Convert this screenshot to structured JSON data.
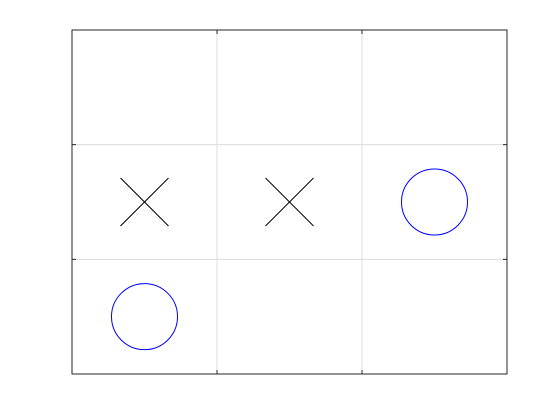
{
  "game": {
    "type": "tic-tac-toe",
    "rows": 3,
    "cols": 3,
    "cells": [
      [
        "",
        "",
        ""
      ],
      [
        "X",
        "X",
        "O"
      ],
      [
        "O",
        "",
        ""
      ]
    ]
  },
  "colors": {
    "x_mark": "#000000",
    "o_mark": "#0000ff",
    "grid_line": "#dcdcdc",
    "border": "#262626",
    "background": "#ffffff"
  },
  "icons": {
    "x_mark": "cross-mark-icon",
    "o_mark": "circle-mark-icon"
  }
}
